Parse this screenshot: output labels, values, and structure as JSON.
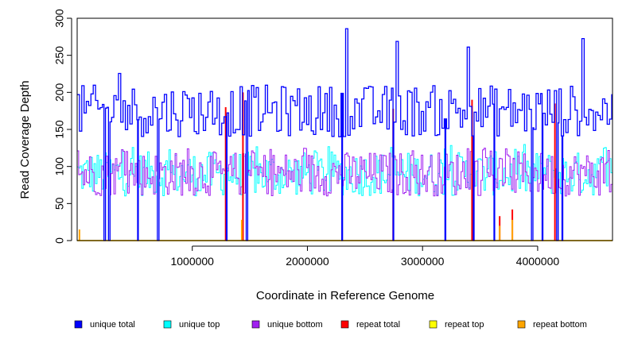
{
  "chart_data": {
    "type": "line",
    "title": "",
    "xlabel": "Coordinate in Reference Genome",
    "ylabel": "Read Coverage Depth",
    "xlim": [
      0,
      4650000
    ],
    "ylim": [
      0,
      300
    ],
    "x_ticks": [
      1000000,
      2000000,
      3000000,
      4000000
    ],
    "x_tick_labels": [
      "1000000",
      "2000000",
      "3000000",
      "4000000"
    ],
    "y_ticks": [
      0,
      50,
      100,
      150,
      200,
      250,
      300
    ],
    "y_tick_labels": [
      "0",
      "50",
      "100",
      "150",
      "200",
      "250",
      "300"
    ],
    "grid": false,
    "legend_position": "bottom",
    "series": [
      {
        "name": "unique total",
        "color": "#0000ff",
        "typical_range": [
          140,
          210
        ],
        "peak": 297
      },
      {
        "name": "unique top",
        "color": "#00ffff",
        "typical_range": [
          60,
          120
        ],
        "peak": 130
      },
      {
        "name": "unique bottom",
        "color": "#a020f0",
        "typical_range": [
          60,
          120
        ],
        "peak": 125
      },
      {
        "name": "repeat total",
        "color": "#ff0000",
        "typical_range": [
          0,
          0
        ],
        "peak": 200
      },
      {
        "name": "repeat top",
        "color": "#ffff00",
        "typical_range": [
          0,
          0
        ],
        "peak": 15
      },
      {
        "name": "repeat bottom",
        "color": "#ffa500",
        "typical_range": [
          0,
          0
        ],
        "peak": 30
      }
    ],
    "dips_to_zero_at": [
      235000,
      275000,
      525000,
      700000,
      1295000,
      1470000,
      2300000,
      2745000,
      3195000,
      3440000,
      3620000,
      3950000,
      4040000,
      4170000,
      4210000
    ],
    "repeat_total_spikes": [
      {
        "x": 1290000,
        "y": 180
      },
      {
        "x": 1440000,
        "y": 200
      },
      {
        "x": 2745000,
        "y": 178
      },
      {
        "x": 3430000,
        "y": 190
      },
      {
        "x": 3670000,
        "y": 33
      },
      {
        "x": 3780000,
        "y": 42
      },
      {
        "x": 4150000,
        "y": 185
      }
    ],
    "repeat_bottom_spikes": [
      {
        "x": 20000,
        "y": 15
      },
      {
        "x": 1430000,
        "y": 28
      },
      {
        "x": 3670000,
        "y": 20
      },
      {
        "x": 3780000,
        "y": 28
      }
    ]
  }
}
